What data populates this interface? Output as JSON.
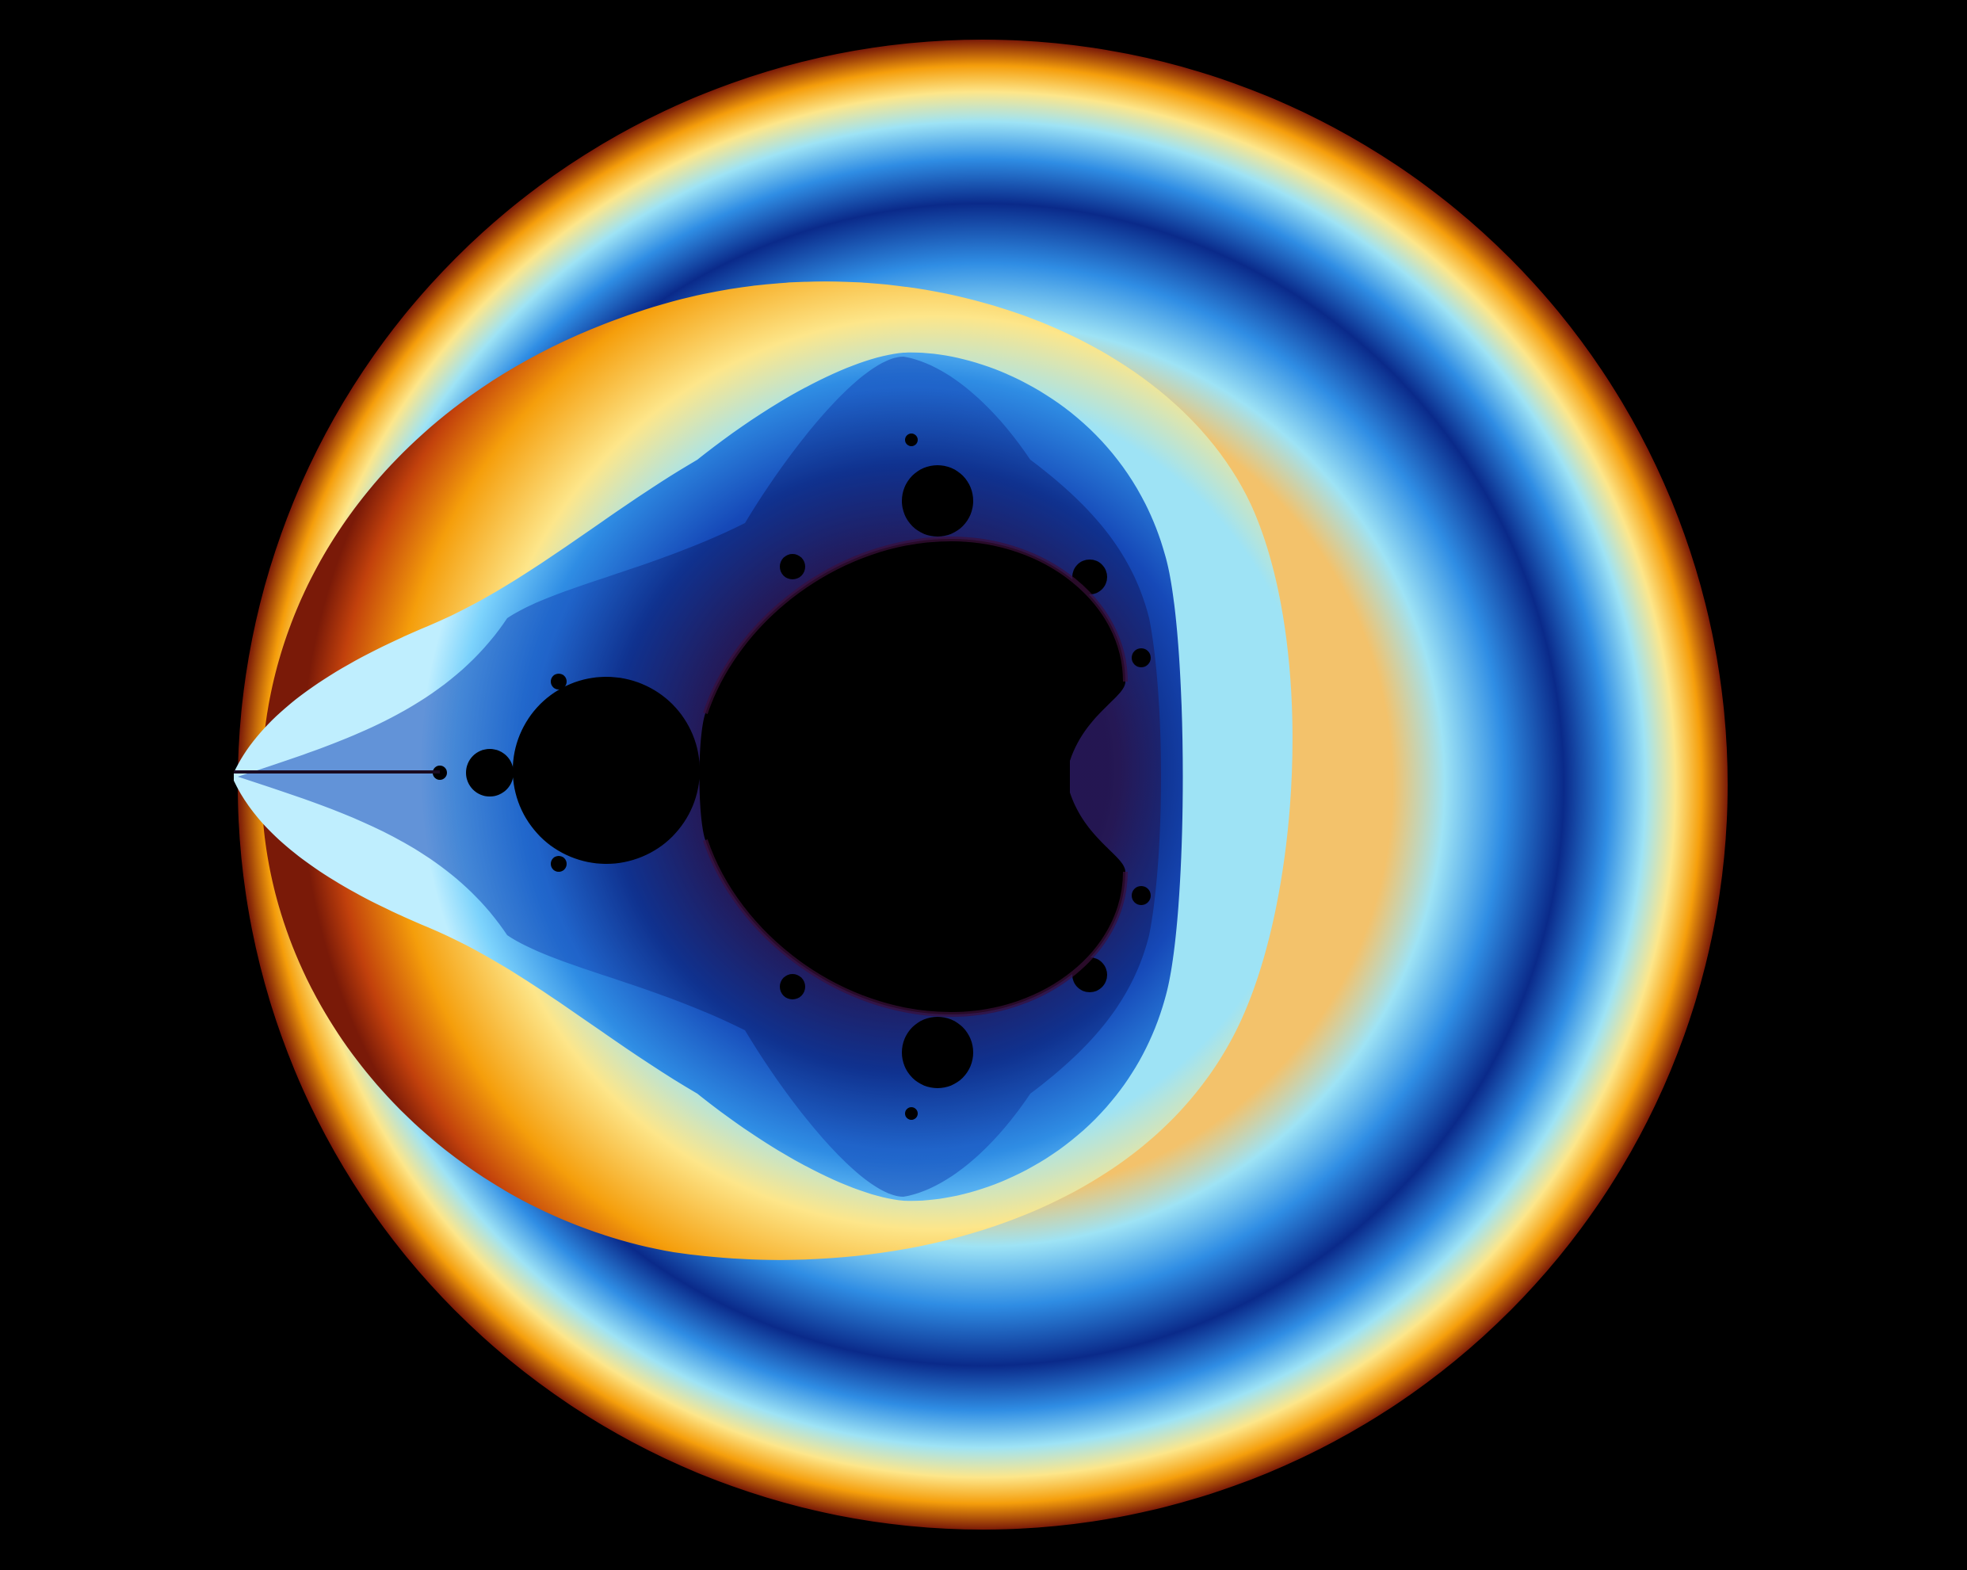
{
  "image": {
    "subject": "mandelbrot-set-fractal",
    "background_color": "#000000",
    "set_color": "#000000",
    "palette": [
      "#7a1a08",
      "#c2410c",
      "#f59e0b",
      "#fde68a",
      "#7dd3fc",
      "#2f8de4",
      "#1649b8",
      "#0a1f6e",
      "#3a0f3a"
    ]
  }
}
